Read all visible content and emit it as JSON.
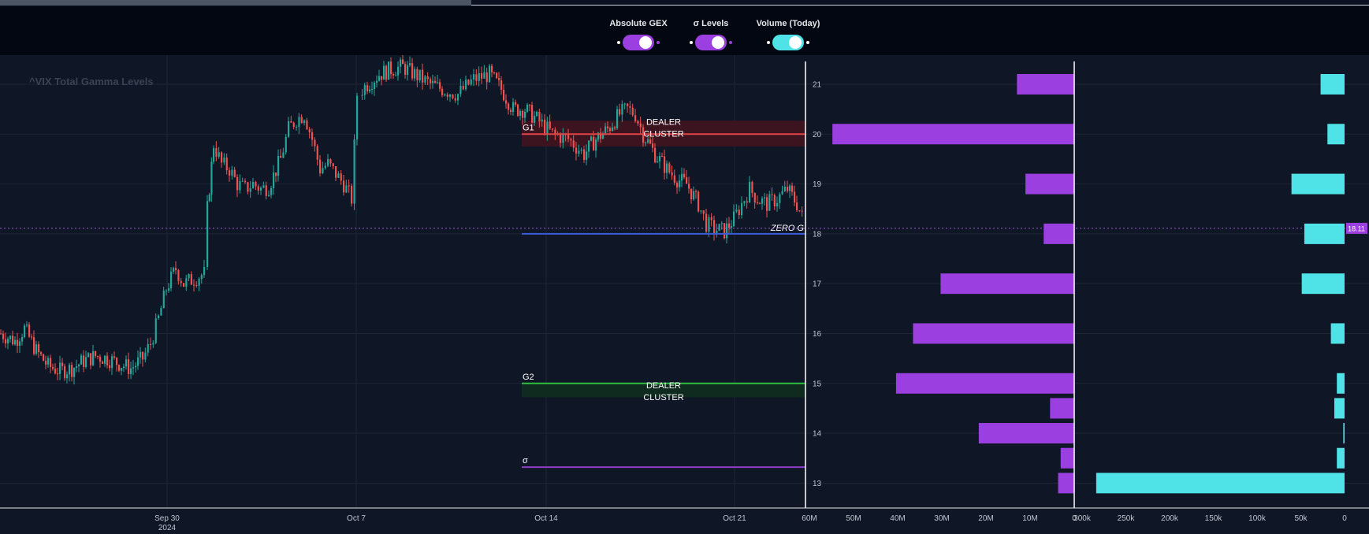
{
  "toolbar": {
    "toggles": [
      {
        "label": "Absolute GEX",
        "color": "#9b3fe0",
        "dot_color": "#9b3fe0"
      },
      {
        "label": "σ Levels",
        "color": "#9b3fe0",
        "dot_color": "#9b3fe0"
      },
      {
        "label": "Volume (Today)",
        "color": "#4fe3e8",
        "dot_color": "#ffffff"
      }
    ]
  },
  "chart": {
    "watermark": "^VIX Total Gamma Levels",
    "current_price": 18.11,
    "current_price_label": "18.11",
    "x_tick_labels": [
      "Sep 30\n2024",
      "Oct 7",
      "Oct 14",
      "Oct 21"
    ],
    "y_axis": {
      "min": 12.5,
      "max": 21.3,
      "ticks": [
        21,
        20,
        19,
        18,
        17,
        16,
        15,
        14,
        13
      ]
    },
    "levels": [
      {
        "name": "G1",
        "value": 20.0,
        "color": "#e04545",
        "label": "G1",
        "zone_label_1": "DEALER",
        "zone_label_2": "CLUSTER",
        "zone_color": "#3b1420",
        "zone_from": 19.75,
        "zone_to": 20.27
      },
      {
        "name": "ZERO G",
        "value": 18.0,
        "color": "#3b5bdb",
        "label": "ZERO G"
      },
      {
        "name": "G2",
        "value": 15.0,
        "color": "#2fbf3f",
        "label": "G2",
        "zone_label_1": "DEALER",
        "zone_label_2": "CLUSTER",
        "zone_color": "#0f2a1f",
        "zone_from": 14.72,
        "zone_to": 15.0
      },
      {
        "name": "σ",
        "value": 13.32,
        "color": "#8e3ec8",
        "label": "σ"
      }
    ],
    "gex_axis_labels": [
      "60M",
      "50M",
      "40M",
      "30M",
      "20M",
      "10M",
      "0"
    ],
    "gex_axis_max": 60000000,
    "gex_bars": [
      {
        "strike": 21.0,
        "value": 13500000
      },
      {
        "strike": 20.0,
        "value": 57000000
      },
      {
        "strike": 19.0,
        "value": 11500000
      },
      {
        "strike": 18.0,
        "value": 7200000
      },
      {
        "strike": 17.0,
        "value": 31500000
      },
      {
        "strike": 16.0,
        "value": 38000000
      },
      {
        "strike": 15.0,
        "value": 42000000
      },
      {
        "strike": 14.5,
        "value": 5700000
      },
      {
        "strike": 14.0,
        "value": 22500000
      },
      {
        "strike": 13.5,
        "value": 3200000
      },
      {
        "strike": 13.0,
        "value": 3800000
      }
    ],
    "vol_axis_labels": [
      "300k",
      "250k",
      "200k",
      "150k",
      "100k",
      "50k",
      "0"
    ],
    "vol_axis_max": 300000,
    "vol_bars": [
      {
        "strike": 21.0,
        "value": 28000
      },
      {
        "strike": 20.0,
        "value": 20000
      },
      {
        "strike": 19.0,
        "value": 62000
      },
      {
        "strike": 18.0,
        "value": 47000
      },
      {
        "strike": 17.0,
        "value": 50000
      },
      {
        "strike": 16.0,
        "value": 16000
      },
      {
        "strike": 15.0,
        "value": 9000
      },
      {
        "strike": 14.5,
        "value": 12000
      },
      {
        "strike": 14.0,
        "value": 1500
      },
      {
        "strike": 13.5,
        "value": 9000
      },
      {
        "strike": 13.0,
        "value": 290000
      }
    ],
    "colors": {
      "up": "#26a69a",
      "down": "#ef5350",
      "gex": "#9b3fe0",
      "vol": "#4fe3e8",
      "price_tag": "#9b3fe0"
    }
  }
}
